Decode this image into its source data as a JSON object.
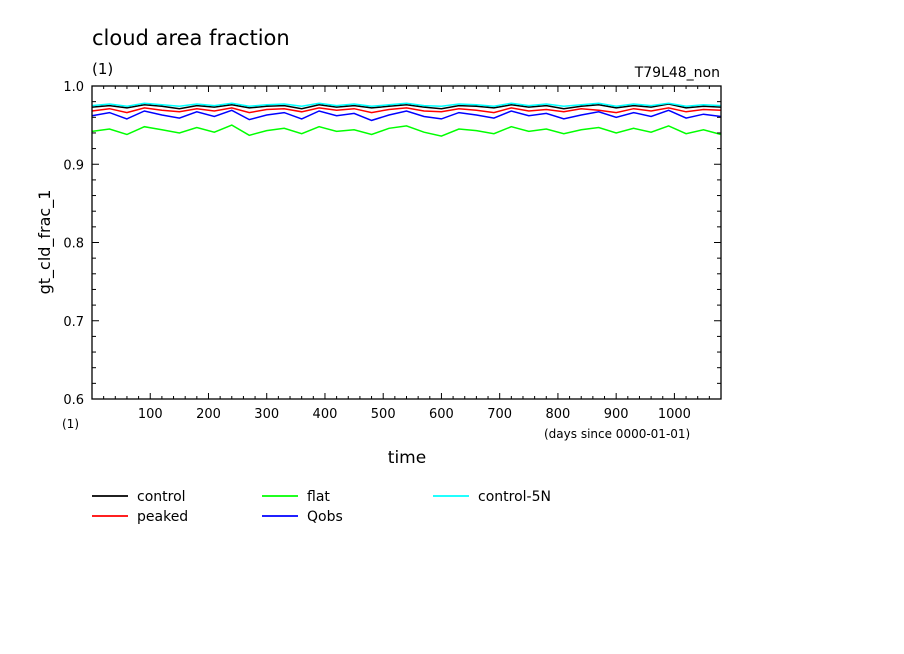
{
  "chart_data": {
    "type": "line",
    "title": "cloud area fraction",
    "units_label": "(1)",
    "run_label": "T79L48_non",
    "xlabel": "time",
    "xunits": "(days since 0000-01-01)",
    "ylabel": "gt_cld_frac_1",
    "yunits": "(1)",
    "xlim": [
      0,
      1080
    ],
    "ylim": [
      0.6,
      1.0
    ],
    "xticks": [
      100,
      200,
      300,
      400,
      500,
      600,
      700,
      800,
      900,
      1000
    ],
    "xtick_labels": [
      "100",
      "200",
      "300",
      "400",
      "500",
      "600",
      "700",
      "800",
      "900",
      "1000"
    ],
    "yticks": [
      0.6,
      0.7,
      0.8,
      0.9,
      1.0
    ],
    "ytick_labels": [
      "0.6",
      "0.7",
      "0.8",
      "0.9",
      "1.0"
    ],
    "x": [
      0,
      30,
      60,
      90,
      120,
      150,
      180,
      210,
      240,
      270,
      300,
      330,
      360,
      390,
      420,
      450,
      480,
      510,
      540,
      570,
      600,
      630,
      660,
      690,
      720,
      750,
      780,
      810,
      840,
      870,
      900,
      930,
      960,
      990,
      1020,
      1050,
      1080
    ],
    "series": [
      {
        "name": "control",
        "color": "#000000",
        "values": [
          0.973,
          0.975,
          0.972,
          0.976,
          0.974,
          0.971,
          0.975,
          0.973,
          0.976,
          0.972,
          0.974,
          0.975,
          0.971,
          0.976,
          0.973,
          0.975,
          0.972,
          0.974,
          0.976,
          0.973,
          0.971,
          0.975,
          0.974,
          0.972,
          0.976,
          0.973,
          0.975,
          0.971,
          0.974,
          0.976,
          0.972,
          0.975,
          0.973,
          0.977,
          0.972,
          0.974,
          0.973
        ]
      },
      {
        "name": "peaked",
        "color": "#ff0000",
        "values": [
          0.968,
          0.971,
          0.966,
          0.972,
          0.969,
          0.967,
          0.971,
          0.968,
          0.972,
          0.966,
          0.97,
          0.971,
          0.967,
          0.972,
          0.969,
          0.971,
          0.966,
          0.97,
          0.972,
          0.968,
          0.967,
          0.971,
          0.969,
          0.966,
          0.972,
          0.968,
          0.97,
          0.967,
          0.971,
          0.969,
          0.966,
          0.971,
          0.968,
          0.972,
          0.967,
          0.97,
          0.969
        ]
      },
      {
        "name": "flat",
        "color": "#00ff00",
        "values": [
          0.942,
          0.945,
          0.938,
          0.948,
          0.944,
          0.94,
          0.947,
          0.941,
          0.95,
          0.937,
          0.943,
          0.946,
          0.939,
          0.948,
          0.942,
          0.944,
          0.938,
          0.946,
          0.949,
          0.941,
          0.936,
          0.945,
          0.943,
          0.939,
          0.948,
          0.942,
          0.945,
          0.939,
          0.944,
          0.947,
          0.94,
          0.946,
          0.941,
          0.949,
          0.939,
          0.944,
          0.938
        ]
      },
      {
        "name": "Qobs",
        "color": "#0000ff",
        "values": [
          0.962,
          0.966,
          0.958,
          0.968,
          0.963,
          0.959,
          0.967,
          0.961,
          0.969,
          0.957,
          0.963,
          0.966,
          0.958,
          0.968,
          0.962,
          0.965,
          0.956,
          0.963,
          0.968,
          0.961,
          0.958,
          0.966,
          0.963,
          0.959,
          0.968,
          0.962,
          0.965,
          0.958,
          0.963,
          0.967,
          0.96,
          0.966,
          0.961,
          0.969,
          0.959,
          0.964,
          0.961
        ]
      },
      {
        "name": "control-5N",
        "color": "#00ffff",
        "values": [
          0.975,
          0.977,
          0.974,
          0.978,
          0.976,
          0.974,
          0.977,
          0.975,
          0.978,
          0.974,
          0.976,
          0.977,
          0.974,
          0.978,
          0.975,
          0.977,
          0.974,
          0.976,
          0.978,
          0.975,
          0.974,
          0.977,
          0.976,
          0.974,
          0.978,
          0.975,
          0.977,
          0.974,
          0.976,
          0.978,
          0.974,
          0.977,
          0.975,
          0.978,
          0.974,
          0.976,
          0.975
        ]
      }
    ],
    "legend_placement": "bottom",
    "grid": false
  }
}
